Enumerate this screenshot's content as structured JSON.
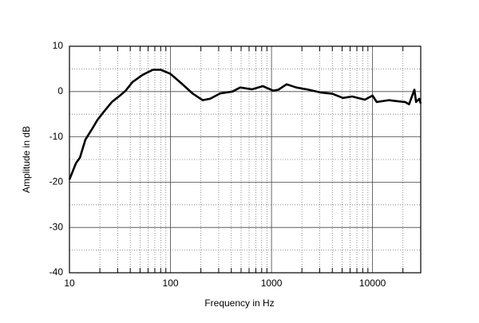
{
  "chart_data": {
    "type": "line",
    "xlabel": "Frequency in Hz",
    "ylabel": "Amplitude in dB",
    "xscale": "log",
    "xlim": [
      10,
      30000
    ],
    "ylim": [
      -40,
      10
    ],
    "xticks": [
      10,
      100,
      1000,
      10000
    ],
    "yticks": [
      10,
      0,
      -10,
      -20,
      -30,
      -40
    ],
    "xminor": [
      20,
      30,
      40,
      50,
      60,
      70,
      80,
      90,
      200,
      300,
      400,
      500,
      600,
      700,
      800,
      900,
      2000,
      3000,
      4000,
      5000,
      6000,
      7000,
      8000,
      9000,
      20000
    ],
    "yminor": [
      5,
      -5,
      -15,
      -25,
      -35
    ],
    "grid": true,
    "series": [
      {
        "color": "#000000",
        "x": [
          10,
          11.6,
          12.7,
          14.4,
          16.7,
          19,
          22,
          26.3,
          31.6,
          36,
          42,
          53,
          67,
          80,
          100,
          127,
          167,
          208,
          246,
          311,
          410,
          490,
          640,
          820,
          1040,
          1170,
          1410,
          1760,
          2330,
          3050,
          4000,
          5100,
          6300,
          8400,
          10000,
          11000,
          14500,
          17000,
          21000,
          23000,
          26000,
          27000,
          29000,
          30000
        ],
        "values": [
          -19.4,
          -15.8,
          -14.6,
          -10.6,
          -8.3,
          -6.2,
          -4.4,
          -2.3,
          -0.9,
          0.2,
          2.1,
          3.7,
          4.8,
          4.8,
          3.9,
          1.9,
          -0.5,
          -1.9,
          -1.6,
          -0.4,
          0,
          0.9,
          0.5,
          1.2,
          0.2,
          0.4,
          1.6,
          0.9,
          0.4,
          -0.2,
          -0.5,
          -1.4,
          -1.1,
          -1.8,
          -0.9,
          -2.3,
          -1.9,
          -2.1,
          -2.3,
          -2.8,
          0.4,
          -2.3,
          -1.6,
          -2.6
        ]
      }
    ]
  }
}
